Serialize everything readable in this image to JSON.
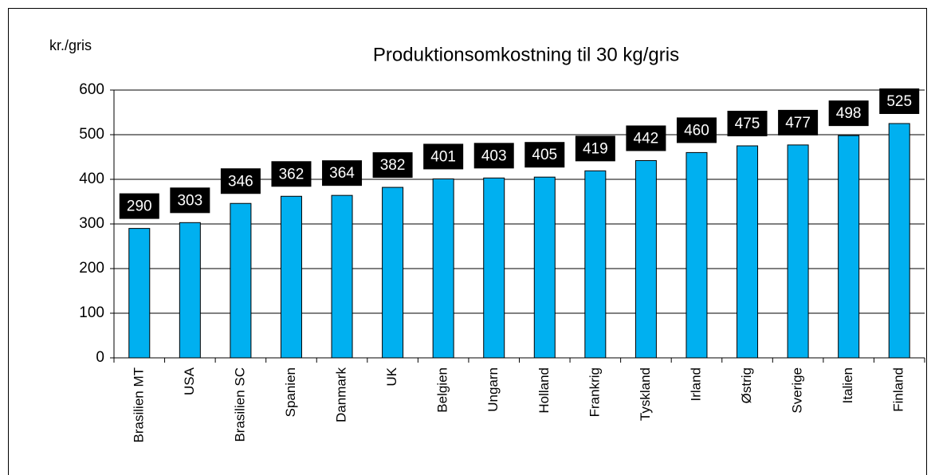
{
  "chart_data": {
    "type": "bar",
    "title": "Produktionsomkostning  til 30 kg/gris",
    "y_label": "kr./gris",
    "categories": [
      "Brasilien MT",
      "USA",
      "Brasilien SC",
      "Spanien",
      "Danmark",
      "UK",
      "Belgien",
      "Ungarn",
      "Holland",
      "Frankrig",
      "Tyskland",
      "Irland",
      "Østrig",
      "Sverige",
      "Italien",
      "Finland"
    ],
    "values": [
      290,
      303,
      346,
      362,
      364,
      382,
      401,
      403,
      405,
      419,
      442,
      460,
      475,
      477,
      498,
      525
    ],
    "color": "#00b0f0",
    "ylim": [
      0,
      600
    ],
    "yticks": [
      0,
      100,
      200,
      300,
      400,
      500,
      600
    ],
    "grid": true
  }
}
